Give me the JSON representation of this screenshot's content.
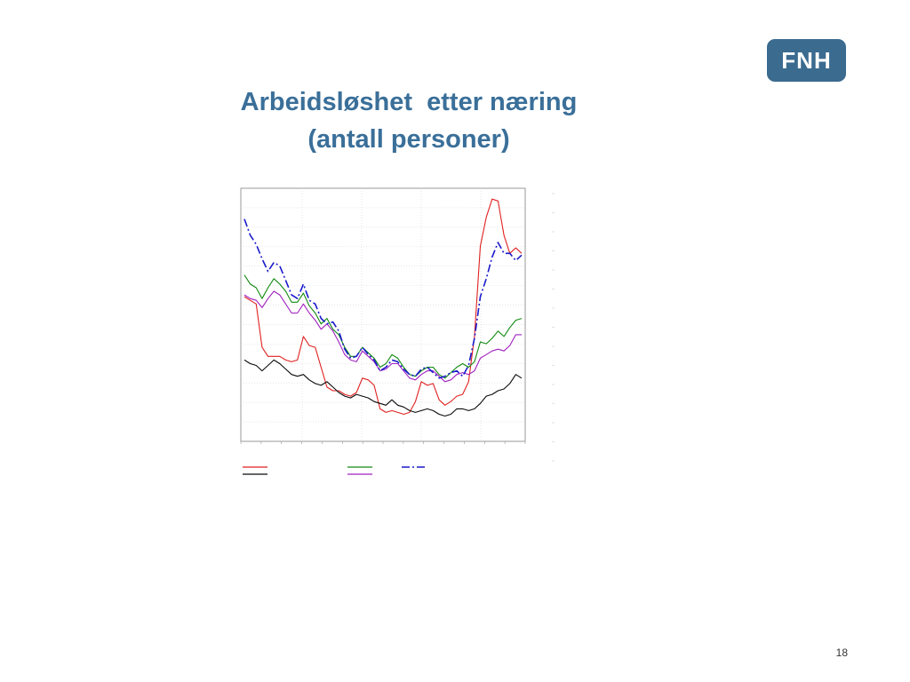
{
  "slide": {
    "title_line1": "Arbeidsløshet  etter næring",
    "title_line2": "(antall personer)",
    "page_number": "18"
  },
  "logo": {
    "text": "FNH",
    "color": "#3b6b8f"
  },
  "colors": {
    "title": "#3a6f99"
  },
  "chart_data": {
    "type": "line",
    "title": "",
    "xlabel": "",
    "ylabel": "",
    "grid": true,
    "legend": "bottom",
    "series": [
      {
        "color": "#e02020",
        "style": "solid",
        "values": [
          80,
          78,
          76,
          52,
          47,
          47,
          47,
          45,
          44,
          45,
          58,
          53,
          52,
          41,
          30,
          28,
          28,
          26,
          25,
          27,
          35,
          34,
          31,
          18,
          16,
          17,
          16,
          15,
          16,
          22,
          33,
          31,
          32,
          23,
          20,
          22,
          25,
          26,
          33,
          58,
          108,
          124,
          134,
          133,
          114,
          104,
          107,
          104
        ]
      },
      {
        "color": "#108a10",
        "style": "solid",
        "values": [
          92,
          87,
          85,
          79,
          85,
          90,
          87,
          83,
          77,
          77,
          82,
          75,
          71,
          65,
          68,
          62,
          59,
          52,
          47,
          47,
          52,
          49,
          46,
          41,
          43,
          48,
          46,
          41,
          37,
          36,
          39,
          41,
          41,
          37,
          35,
          38,
          41,
          43,
          41,
          44,
          55,
          54,
          57,
          61,
          58,
          63,
          67,
          68
        ]
      },
      {
        "color": "#0a0a0a",
        "style": "solid",
        "values": [
          45,
          43,
          42,
          39,
          42,
          45,
          43,
          40,
          37,
          36,
          37,
          34,
          32,
          31,
          33,
          30,
          27,
          25,
          24,
          26,
          25,
          24,
          22,
          21,
          20,
          23,
          20,
          19,
          17,
          16,
          17,
          18,
          17,
          15,
          14,
          15,
          18,
          18,
          17,
          18,
          21,
          25,
          26,
          28,
          29,
          32,
          37,
          35
        ]
      },
      {
        "color": "#a020c0",
        "style": "solid",
        "values": [
          81,
          79,
          78,
          74,
          79,
          83,
          81,
          76,
          71,
          71,
          76,
          71,
          67,
          62,
          65,
          61,
          55,
          48,
          45,
          44,
          50,
          47,
          44,
          39,
          40,
          43,
          43,
          39,
          35,
          34,
          37,
          39,
          39,
          36,
          33,
          34,
          37,
          38,
          37,
          39,
          46,
          48,
          50,
          51,
          50,
          53,
          59,
          59
        ]
      },
      {
        "color": "#1a1acc",
        "style": "dashdot",
        "values": [
          123,
          114,
          109,
          101,
          94,
          99,
          97,
          89,
          81,
          79,
          87,
          78,
          76,
          68,
          65,
          66,
          61,
          51,
          46,
          47,
          52,
          48,
          45,
          39,
          41,
          45,
          44,
          40,
          37,
          36,
          40,
          41,
          38,
          35,
          36,
          38,
          39,
          36,
          42,
          57,
          80,
          90,
          102,
          110,
          104,
          104,
          100,
          103
        ]
      }
    ]
  }
}
